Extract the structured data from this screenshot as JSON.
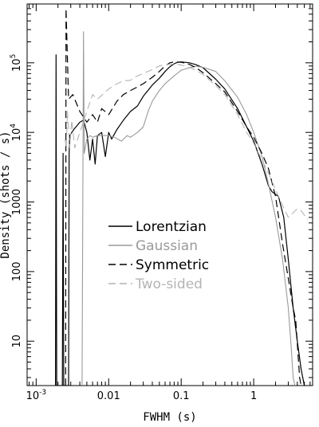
{
  "chart_data": {
    "type": "line",
    "title": "",
    "xlabel": "FWHM (s)",
    "ylabel": "Density (shots / s)",
    "xscale": "log",
    "yscale": "log",
    "xlim": [
      0.00075,
      6.5
    ],
    "ylim": [
      2.3,
      700000
    ],
    "grid": false,
    "legend_position": "center-left",
    "x_ticks": [
      {
        "value": 0.001,
        "label": "10",
        "exp": "-3"
      },
      {
        "value": 0.01,
        "label": "0.01",
        "exp": ""
      },
      {
        "value": 0.1,
        "label": "0.1",
        "exp": ""
      },
      {
        "value": 1,
        "label": "1",
        "exp": ""
      }
    ],
    "y_ticks": [
      {
        "value": 10,
        "label": "10",
        "exp": ""
      },
      {
        "value": 100,
        "label": "100",
        "exp": ""
      },
      {
        "value": 1000,
        "label": "1000",
        "exp": ""
      },
      {
        "value": 10000,
        "label": "10",
        "exp": "4"
      },
      {
        "value": 100000,
        "label": "10",
        "exp": "5"
      }
    ],
    "series": [
      {
        "name": "Lorentzian",
        "color": "#000000",
        "dash": "",
        "width": 1.2,
        "points": [
          [
            0.00185,
            2.3
          ],
          [
            0.00188,
            130000
          ],
          [
            0.00192,
            2.3
          ],
          [
            0.0023,
            2.3
          ],
          [
            0.00235,
            5000
          ],
          [
            0.0024,
            2.3
          ],
          [
            0.0028,
            2.3
          ],
          [
            0.00285,
            5000
          ],
          [
            0.0029,
            9000
          ],
          [
            0.0033,
            11000
          ],
          [
            0.004,
            14000
          ],
          [
            0.0045,
            15000
          ],
          [
            0.005,
            10000
          ],
          [
            0.0055,
            4000
          ],
          [
            0.006,
            8000
          ],
          [
            0.0065,
            3500
          ],
          [
            0.007,
            9000
          ],
          [
            0.008,
            10000
          ],
          [
            0.009,
            4500
          ],
          [
            0.01,
            10000
          ],
          [
            0.011,
            8000
          ],
          [
            0.013,
            11000
          ],
          [
            0.016,
            15000
          ],
          [
            0.02,
            20000
          ],
          [
            0.025,
            24000
          ],
          [
            0.03,
            33000
          ],
          [
            0.04,
            48000
          ],
          [
            0.05,
            60000
          ],
          [
            0.06,
            75000
          ],
          [
            0.07,
            88000
          ],
          [
            0.08,
            97000
          ],
          [
            0.09,
            102000
          ],
          [
            0.1,
            103000
          ],
          [
            0.13,
            100000
          ],
          [
            0.16,
            94000
          ],
          [
            0.2,
            85000
          ],
          [
            0.3,
            58000
          ],
          [
            0.4,
            42000
          ],
          [
            0.6,
            22000
          ],
          [
            0.8,
            12000
          ],
          [
            1.0,
            7500
          ],
          [
            1.3,
            3500
          ],
          [
            1.6,
            1700
          ],
          [
            1.8,
            1400
          ],
          [
            2.2,
            1200
          ],
          [
            2.6,
            600
          ],
          [
            3.0,
            150
          ],
          [
            3.5,
            30
          ],
          [
            4.0,
            10
          ],
          [
            4.5,
            4
          ],
          [
            5.0,
            2.3
          ]
        ]
      },
      {
        "name": "Gaussian",
        "color": "#9a9a9a",
        "dash": "",
        "width": 1.1,
        "points": [
          [
            0.0043,
            2.3
          ],
          [
            0.0045,
            280000
          ],
          [
            0.0046,
            5000
          ],
          [
            0.005,
            8000
          ],
          [
            0.0055,
            9000
          ],
          [
            0.006,
            8500
          ],
          [
            0.007,
            9000
          ],
          [
            0.008,
            9000
          ],
          [
            0.01,
            9000
          ],
          [
            0.012,
            8500
          ],
          [
            0.015,
            7500
          ],
          [
            0.018,
            9000
          ],
          [
            0.02,
            8500
          ],
          [
            0.025,
            10000
          ],
          [
            0.03,
            12000
          ],
          [
            0.035,
            20000
          ],
          [
            0.04,
            28000
          ],
          [
            0.05,
            40000
          ],
          [
            0.06,
            50000
          ],
          [
            0.08,
            65000
          ],
          [
            0.1,
            78000
          ],
          [
            0.13,
            85000
          ],
          [
            0.16,
            89000
          ],
          [
            0.2,
            86000
          ],
          [
            0.3,
            75000
          ],
          [
            0.4,
            55000
          ],
          [
            0.6,
            32000
          ],
          [
            0.8,
            18000
          ],
          [
            1.0,
            10000
          ],
          [
            1.3,
            4500
          ],
          [
            1.6,
            1800
          ],
          [
            2.0,
            600
          ],
          [
            2.5,
            150
          ],
          [
            3.0,
            30
          ],
          [
            3.3,
            8
          ],
          [
            3.5,
            3
          ],
          [
            3.7,
            2.3
          ]
        ]
      },
      {
        "name": "Symmetric",
        "color": "#000000",
        "dash": "9,5",
        "width": 1.2,
        "points": [
          [
            0.00255,
            2.3
          ],
          [
            0.00258,
            600000
          ],
          [
            0.0028,
            30000
          ],
          [
            0.0032,
            35000
          ],
          [
            0.004,
            20000
          ],
          [
            0.005,
            14000
          ],
          [
            0.006,
            18000
          ],
          [
            0.007,
            14000
          ],
          [
            0.008,
            22000
          ],
          [
            0.01,
            18000
          ],
          [
            0.013,
            28000
          ],
          [
            0.016,
            35000
          ],
          [
            0.02,
            40000
          ],
          [
            0.025,
            45000
          ],
          [
            0.03,
            50000
          ],
          [
            0.04,
            62000
          ],
          [
            0.05,
            75000
          ],
          [
            0.06,
            90000
          ],
          [
            0.07,
            100000
          ],
          [
            0.08,
            103000
          ],
          [
            0.1,
            102000
          ],
          [
            0.13,
            95000
          ],
          [
            0.16,
            85000
          ],
          [
            0.2,
            72000
          ],
          [
            0.3,
            50000
          ],
          [
            0.4,
            38000
          ],
          [
            0.6,
            20000
          ],
          [
            0.8,
            12000
          ],
          [
            1.0,
            8500
          ],
          [
            1.3,
            5000
          ],
          [
            1.6,
            3000
          ],
          [
            2.0,
            1200
          ],
          [
            2.5,
            250
          ],
          [
            3.0,
            80
          ],
          [
            3.5,
            30
          ],
          [
            3.8,
            20
          ],
          [
            4.3,
            3
          ],
          [
            4.5,
            2.3
          ]
        ]
      },
      {
        "name": "Two-sided",
        "color": "#b4b4b4",
        "dash": "9,5",
        "width": 1.1,
        "points": [
          [
            0.0025,
            8000
          ],
          [
            0.0026,
            6000
          ],
          [
            0.0027,
            20000
          ],
          [
            0.0029,
            6000
          ],
          [
            0.0031,
            15000
          ],
          [
            0.0034,
            6000
          ],
          [
            0.004,
            10000
          ],
          [
            0.005,
            20000
          ],
          [
            0.006,
            35000
          ],
          [
            0.007,
            30000
          ],
          [
            0.008,
            34000
          ],
          [
            0.01,
            42000
          ],
          [
            0.013,
            50000
          ],
          [
            0.016,
            55000
          ],
          [
            0.02,
            56000
          ],
          [
            0.025,
            65000
          ],
          [
            0.03,
            70000
          ],
          [
            0.04,
            80000
          ],
          [
            0.05,
            90000
          ],
          [
            0.06,
            94000
          ],
          [
            0.08,
            96000
          ],
          [
            0.1,
            93000
          ],
          [
            0.13,
            86000
          ],
          [
            0.16,
            78000
          ],
          [
            0.2,
            68000
          ],
          [
            0.3,
            47000
          ],
          [
            0.4,
            35000
          ],
          [
            0.6,
            18000
          ],
          [
            0.8,
            10000
          ],
          [
            1.0,
            7000
          ],
          [
            1.3,
            4000
          ],
          [
            1.6,
            2600
          ],
          [
            2.0,
            1500
          ],
          [
            2.5,
            900
          ],
          [
            3.0,
            600
          ],
          [
            3.5,
            700
          ],
          [
            4.0,
            800
          ],
          [
            4.5,
            750
          ],
          [
            5.0,
            650
          ],
          [
            5.5,
            550
          ]
        ]
      }
    ]
  }
}
